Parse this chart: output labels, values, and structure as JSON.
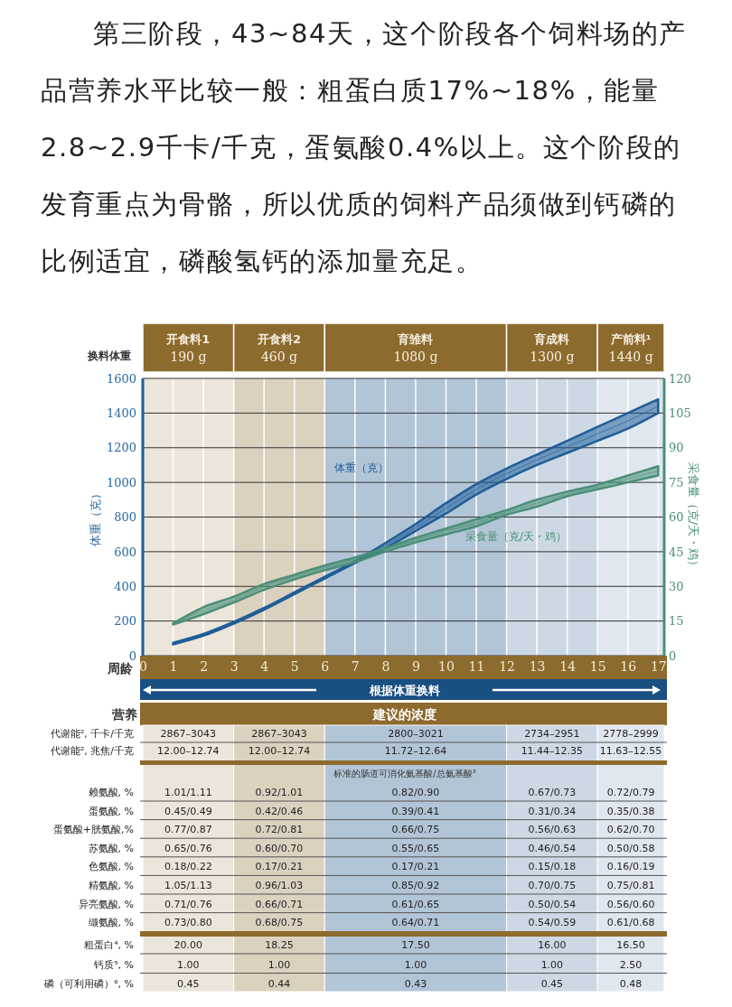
{
  "chart_data": {
    "type": "line",
    "title": "第三阶段，43~84天，这个阶段各个饲料场的产品营养水平比较一般：粗蛋白质17%~18%，能量2.8~2.9千卡/千克，蛋氨酸0.4%以上。这个阶段的发育重点为骨骼，所以优质的饲料产品须做到钙磷的比例适宜，磷酸氢钙的添加量充足。",
    "xlabel": "周龄",
    "ylabel": "体重（克）",
    "y2label": "采食量（克/天・鸡）",
    "x": [
      1,
      2,
      3,
      4,
      5,
      6,
      7,
      8,
      9,
      10,
      11,
      12,
      13,
      14,
      15,
      16,
      17
    ],
    "xlim": [
      0,
      17.2
    ],
    "xticks": [
      0,
      1,
      2,
      3,
      4,
      5,
      6,
      7,
      8,
      9,
      10,
      11,
      12,
      13,
      14,
      15,
      16,
      17
    ],
    "ylim": [
      0,
      1600
    ],
    "yticks": [
      0,
      200,
      400,
      600,
      800,
      1000,
      1200,
      1400,
      1600
    ],
    "y2lim": [
      0,
      120
    ],
    "y2ticks": [
      0,
      15,
      30,
      45,
      60,
      75,
      90,
      105,
      120
    ],
    "grid": true,
    "series": [
      {
        "name": "体重（克）",
        "color": "#1f5e99",
        "values": [
          70,
          120,
          190,
          270,
          360,
          450,
          540,
          635,
          740,
          850,
          960,
          1050,
          1130,
          1205,
          1280,
          1355,
          1440
        ],
        "lower": [
          65,
          115,
          185,
          265,
          355,
          445,
          535,
          620,
          720,
          820,
          930,
          1020,
          1100,
          1170,
          1240,
          1310,
          1400
        ],
        "upper": [
          75,
          125,
          195,
          275,
          365,
          455,
          545,
          650,
          760,
          880,
          990,
          1080,
          1160,
          1240,
          1320,
          1400,
          1480
        ]
      },
      {
        "name": "采食量（克/天・鸡）",
        "color": "#4a8f78",
        "axis": "y2",
        "values": [
          14,
          19.5,
          24,
          30,
          34,
          38,
          41.5,
          46,
          50,
          54,
          57.5,
          62,
          66,
          70,
          73,
          76.5,
          80
        ],
        "lower": [
          13.5,
          18,
          23,
          28.5,
          33,
          37,
          40.5,
          45,
          49,
          52.5,
          56,
          61,
          64.5,
          69,
          72,
          75,
          78
        ],
        "upper": [
          14,
          21,
          25.5,
          31,
          35,
          39,
          42.5,
          46.5,
          51,
          55,
          59,
          63,
          67.5,
          71,
          74,
          78,
          82
        ]
      }
    ],
    "bands": [
      {
        "axis": "x",
        "from": 0,
        "to": 3,
        "color": "#ece5da",
        "label": "开食料1\n190 g"
      },
      {
        "axis": "x",
        "from": 3,
        "to": 6,
        "color": "#dbd1bf",
        "label": "开食料2\n460 g"
      },
      {
        "axis": "x",
        "from": 6,
        "to": 12,
        "color": "#b2c5d6",
        "label": "育雏料\n1080 g"
      },
      {
        "axis": "x",
        "from": 12,
        "to": 15,
        "color": "#ccd9e5",
        "label": "育成料\n1300 g"
      },
      {
        "axis": "x",
        "from": 15,
        "to": 17.2,
        "color": "#e0e7ee",
        "label": "产前料¹\n1440 g"
      }
    ],
    "annotations": [
      "换料体重",
      "根据体重换料",
      "营养",
      "建议的浓度",
      "标准的肠道可消化氨基酸/总氨基酸³",
      "代谢能², 千卡/千克",
      "2867–3043",
      "2867–3043",
      "2800–3021",
      "2734–2951",
      "2778–2999",
      "代谢能², 兆焦/千克",
      "12.00–12.74",
      "12.00–12.74",
      "11.72–12.64",
      "11.44–12.35",
      "11.63–12.55",
      "赖氨酸, %",
      "1.01/1.11",
      "0.92/1.01",
      "0.82/0.90",
      "0.67/0.73",
      "0.72/0.79",
      "蛋氨酸, %",
      "0.45/0.49",
      "0.42/0.46",
      "0.39/0.41",
      "0.31/0.34",
      "0.35/0.38",
      "蛋氨酸+胱氨酸,%",
      "0.77/0.87",
      "0.72/0.81",
      "0.66/0.75",
      "0.56/0.63",
      "0.62/0.70",
      "苏氨酸, %",
      "0.65/0.76",
      "0.60/0.70",
      "0.55/0.65",
      "0.46/0.54",
      "0.50/0.58",
      "色氨酸, %",
      "0.18/0.22",
      "0.17/0.21",
      "0.17/0.21",
      "0.15/0.18",
      "0.16/0.19",
      "精氨酸, %",
      "1.05/1.13",
      "0.96/1.03",
      "0.85/0.92",
      "0.70/0.75",
      "0.75/0.81",
      "异亮氨酸, %",
      "0.71/0.76",
      "0.66/0.71",
      "0.61/0.65",
      "0.50/0.54",
      "0.56/0.60",
      "缬氨酸, %",
      "0.73/0.80",
      "0.68/0.75",
      "0.64/0.71",
      "0.54/0.59",
      "0.61/0.68",
      "粗蛋白⁴, %",
      "20.00",
      "18.25",
      "17.50",
      "16.00",
      "16.50",
      "钙质⁵, %",
      "1.00",
      "1.00",
      "1.00",
      "1.00",
      "2.50",
      "磷（可利用磷）⁶, %",
      "0.45",
      "0.44",
      "0.43",
      "0.45",
      "0.48"
    ]
  }
}
